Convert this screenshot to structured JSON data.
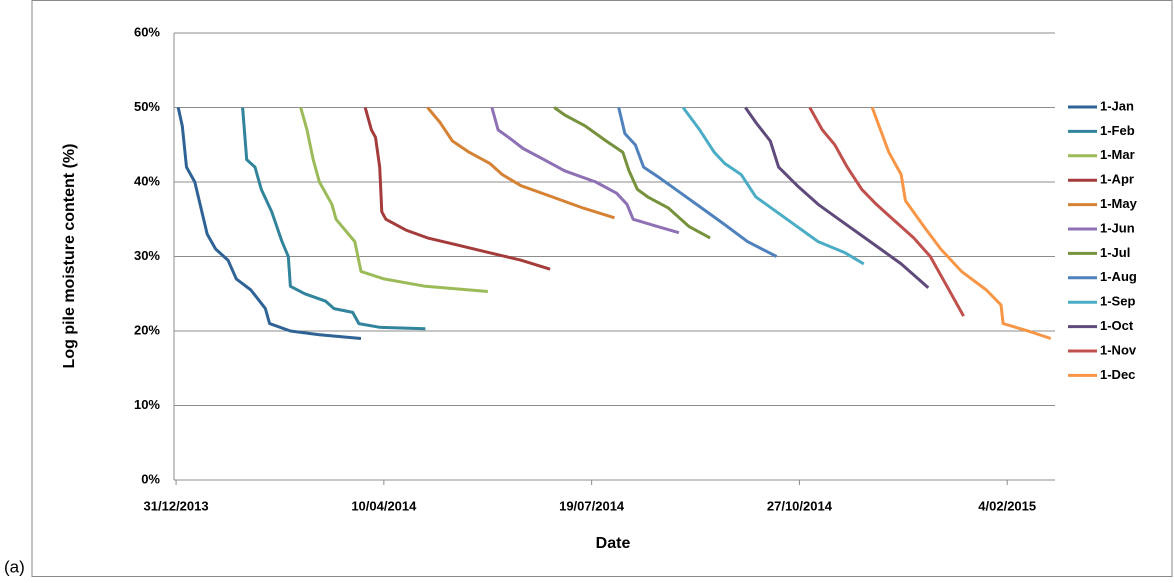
{
  "chart_data": {
    "type": "line",
    "panel_label": "(a)",
    "x_label": "Date",
    "y_label": "Log pile moisture content (%)",
    "xlim": [
      "2013-12-30",
      "2015-02-27"
    ],
    "ylim": [
      0,
      60
    ],
    "xticks": [
      {
        "value": "2013-12-31",
        "label": "31/12/2013"
      },
      {
        "value": "2014-04-10",
        "label": "10/04/2014"
      },
      {
        "value": "2014-07-19",
        "label": "19/07/2014"
      },
      {
        "value": "2014-10-27",
        "label": "27/10/2014"
      },
      {
        "value": "2015-02-04",
        "label": "4/02/2015"
      }
    ],
    "yticks": [
      {
        "value": 0,
        "label": "0%"
      },
      {
        "value": 10,
        "label": "10%"
      },
      {
        "value": 20,
        "label": "20%"
      },
      {
        "value": 30,
        "label": "30%"
      },
      {
        "value": 40,
        "label": "40%"
      },
      {
        "value": 50,
        "label": "50%"
      },
      {
        "value": 60,
        "label": "60%"
      }
    ],
    "grid": true,
    "legend": "right",
    "series": [
      {
        "name": "1-Jan",
        "color": "#2f6396",
        "x": [
          "2014-01-01",
          "2014-01-03",
          "2014-01-05",
          "2014-01-09",
          "2014-01-12",
          "2014-01-15",
          "2014-01-19",
          "2014-01-25",
          "2014-01-29",
          "2014-02-05",
          "2014-02-12",
          "2014-02-14",
          "2014-02-24",
          "2014-03-10",
          "2014-03-30"
        ],
        "values": [
          50,
          47.5,
          42,
          40,
          36.5,
          33,
          31,
          29.5,
          27,
          25.5,
          23,
          21,
          20,
          19.5,
          19
        ]
      },
      {
        "name": "1-Feb",
        "color": "#31849b",
        "x": [
          "2014-02-01",
          "2014-02-03",
          "2014-02-07",
          "2014-02-10",
          "2014-02-15",
          "2014-02-20",
          "2014-02-23",
          "2014-02-24",
          "2014-03-03",
          "2014-03-13",
          "2014-03-17",
          "2014-03-26",
          "2014-03-29",
          "2014-04-08",
          "2014-04-30"
        ],
        "values": [
          50,
          43,
          42,
          39,
          36,
          32,
          30,
          26,
          25,
          24,
          23,
          22.5,
          21,
          20.5,
          20.3
        ]
      },
      {
        "name": "1-Mar",
        "color": "#9bbb59",
        "x": [
          "2014-03-01",
          "2014-03-04",
          "2014-03-07",
          "2014-03-10",
          "2014-03-16",
          "2014-03-18",
          "2014-03-24",
          "2014-03-27",
          "2014-03-30",
          "2014-04-10",
          "2014-04-30",
          "2014-05-30"
        ],
        "values": [
          50,
          47,
          43,
          40,
          37,
          35,
          33,
          32,
          28,
          27,
          26,
          25.3
        ]
      },
      {
        "name": "1-Apr",
        "color": "#a33c3a",
        "x": [
          "2014-04-01",
          "2014-04-04",
          "2014-04-06",
          "2014-04-08",
          "2014-04-09",
          "2014-04-11",
          "2014-04-21",
          "2014-05-01",
          "2014-05-16",
          "2014-05-31",
          "2014-06-15",
          "2014-06-29"
        ],
        "values": [
          50,
          47,
          46,
          42,
          36,
          35,
          33.5,
          32.5,
          31.5,
          30.5,
          29.5,
          28.3
        ]
      },
      {
        "name": "1-May",
        "color": "#d68234",
        "x": [
          "2014-05-01",
          "2014-05-07",
          "2014-05-13",
          "2014-05-21",
          "2014-05-31",
          "2014-06-06",
          "2014-06-15",
          "2014-06-30",
          "2014-07-15",
          "2014-07-30"
        ],
        "values": [
          50,
          48,
          45.5,
          44,
          42.5,
          41,
          39.5,
          38,
          36.5,
          35.2
        ]
      },
      {
        "name": "1-Jun",
        "color": "#8e70b5",
        "x": [
          "2014-06-01",
          "2014-06-04",
          "2014-06-09",
          "2014-06-16",
          "2014-06-26",
          "2014-07-06",
          "2014-07-21",
          "2014-07-31",
          "2014-08-05",
          "2014-08-08",
          "2014-08-20",
          "2014-08-30"
        ],
        "values": [
          50,
          47,
          46,
          44.5,
          43,
          41.5,
          40,
          38.5,
          37,
          35,
          34,
          33.2
        ]
      },
      {
        "name": "1-Jul",
        "color": "#76923c",
        "x": [
          "2014-07-01",
          "2014-07-06",
          "2014-07-16",
          "2014-07-26",
          "2014-08-03",
          "2014-08-06",
          "2014-08-10",
          "2014-08-15",
          "2014-08-25",
          "2014-09-04",
          "2014-09-14"
        ],
        "values": [
          50,
          49,
          47.5,
          45.5,
          44,
          41.5,
          39,
          38,
          36.5,
          34,
          32.5
        ]
      },
      {
        "name": "1-Aug",
        "color": "#4f81bd",
        "x": [
          "2014-08-01",
          "2014-08-04",
          "2014-08-09",
          "2014-08-13",
          "2014-08-21",
          "2014-08-31",
          "2014-09-10",
          "2014-09-20",
          "2014-10-02",
          "2014-10-16"
        ],
        "values": [
          50,
          46.5,
          45,
          42,
          40.5,
          38.5,
          36.5,
          34.5,
          32,
          30
        ]
      },
      {
        "name": "1-Sep",
        "color": "#4bacc6",
        "x": [
          "2014-09-01",
          "2014-09-09",
          "2014-09-16",
          "2014-09-21",
          "2014-09-29",
          "2014-10-06",
          "2014-10-16",
          "2014-10-26",
          "2014-11-05",
          "2014-11-18",
          "2014-11-27"
        ],
        "values": [
          50,
          47,
          44,
          42.5,
          41,
          38,
          36,
          34,
          32,
          30.5,
          29
        ]
      },
      {
        "name": "1-Oct",
        "color": "#604a7b",
        "x": [
          "2014-10-01",
          "2014-10-06",
          "2014-10-13",
          "2014-10-17",
          "2014-10-26",
          "2014-11-05",
          "2014-11-15",
          "2014-11-25",
          "2014-12-05",
          "2014-12-15",
          "2014-12-28"
        ],
        "values": [
          50,
          48,
          45.5,
          42,
          39.5,
          37,
          35,
          33,
          31,
          29,
          25.8
        ]
      },
      {
        "name": "1-Nov",
        "color": "#c0504d",
        "x": [
          "2014-11-01",
          "2014-11-07",
          "2014-11-13",
          "2014-11-19",
          "2014-11-26",
          "2014-12-03",
          "2014-12-11",
          "2014-12-21",
          "2014-12-29",
          "2015-01-06",
          "2015-01-14"
        ],
        "values": [
          50,
          47,
          45,
          42,
          39,
          37,
          35,
          32.5,
          30,
          26,
          22
        ]
      },
      {
        "name": "1-Dec",
        "color": "#f79646",
        "x": [
          "2014-12-01",
          "2014-12-05",
          "2014-12-09",
          "2014-12-15",
          "2014-12-17",
          "2014-12-26",
          "2015-01-03",
          "2015-01-13",
          "2015-01-25",
          "2015-02-01",
          "2015-02-02",
          "2015-02-14",
          "2015-02-25"
        ],
        "values": [
          50,
          47,
          44,
          41,
          37.5,
          34,
          31,
          28,
          25.5,
          23.5,
          21,
          20,
          19
        ]
      }
    ]
  }
}
